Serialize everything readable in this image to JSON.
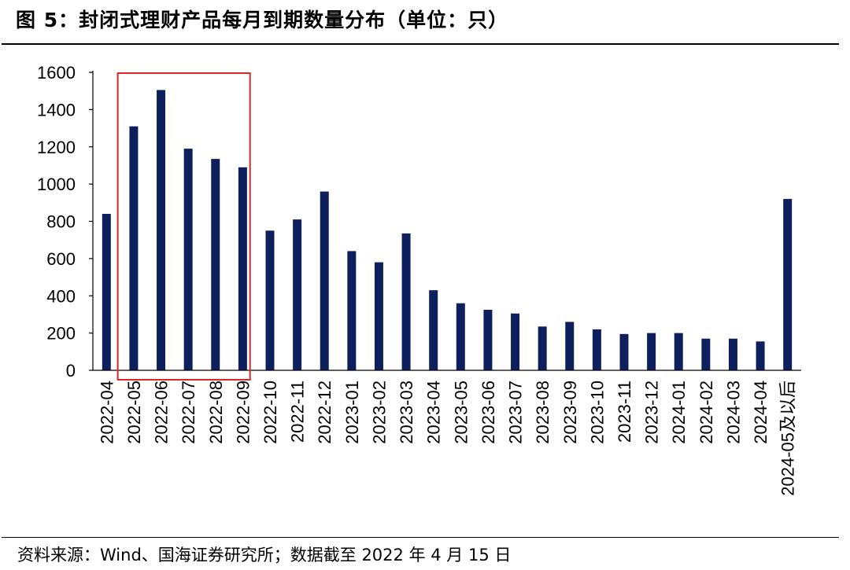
{
  "title": "图 5：封闭式理财产品每月到期数量分布（单位：只）",
  "source": "资料来源：Wind、国海证券研究所；数据截至 2022 年 4 月 15 日",
  "colors": {
    "bar": "#0d1f5c",
    "highlight_box": "#d9262b",
    "axis": "#000000"
  },
  "chart_data": {
    "type": "bar",
    "title": "封闭式理财产品每月到期数量分布（单位：只）",
    "xlabel": "",
    "ylabel": "",
    "ylim": [
      0,
      1600
    ],
    "yticks": [
      0,
      200,
      400,
      600,
      800,
      1000,
      1200,
      1400,
      1600
    ],
    "categories": [
      "2022-04",
      "2022-05",
      "2022-06",
      "2022-07",
      "2022-08",
      "2022-09",
      "2022-10",
      "2022-11",
      "2022-12",
      "2023-01",
      "2023-02",
      "2023-03",
      "2023-04",
      "2023-05",
      "2023-06",
      "2023-07",
      "2023-08",
      "2023-09",
      "2023-10",
      "2023-11",
      "2023-12",
      "2024-01",
      "2024-02",
      "2024-03",
      "2024-04",
      "2024-05及以后"
    ],
    "values": [
      840,
      1310,
      1505,
      1190,
      1135,
      1090,
      750,
      810,
      960,
      640,
      580,
      735,
      430,
      360,
      325,
      305,
      235,
      260,
      220,
      195,
      200,
      200,
      170,
      170,
      155,
      920
    ],
    "highlight": {
      "from": "2022-05",
      "to": "2022-09"
    },
    "grid": false,
    "legend": "none"
  }
}
